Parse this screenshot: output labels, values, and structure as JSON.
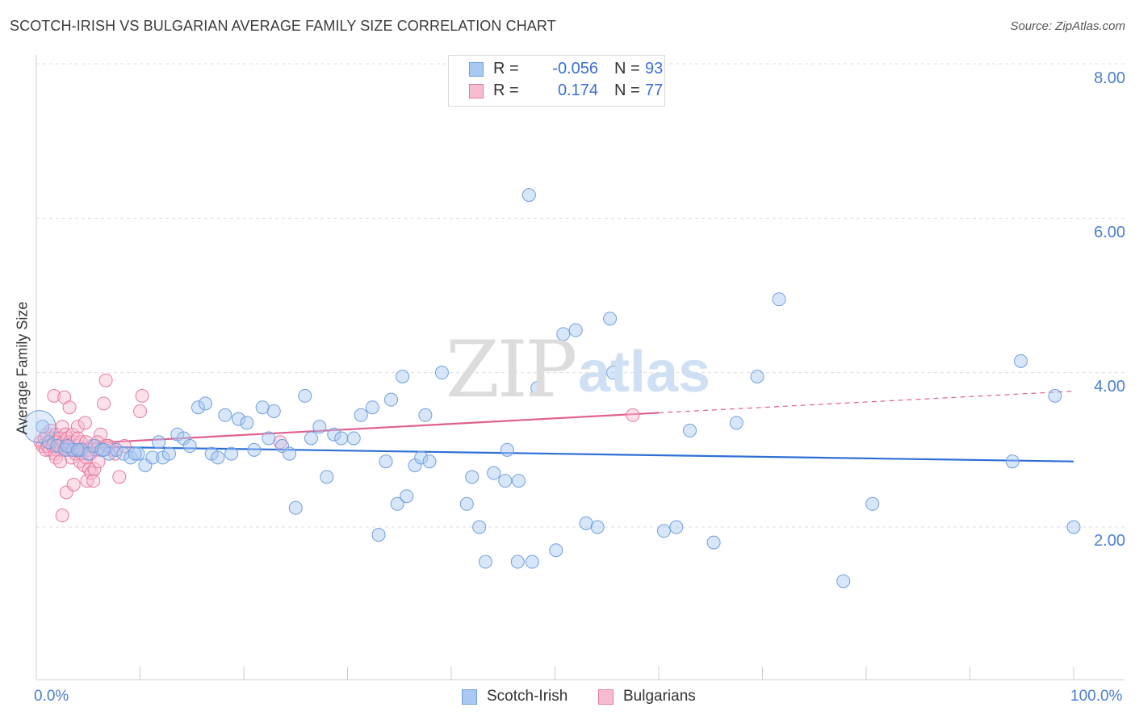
{
  "header": {
    "title": "SCOTCH-IRISH VS BULGARIAN AVERAGE FAMILY SIZE CORRELATION CHART",
    "source": "Source: ZipAtlas.com"
  },
  "watermark": {
    "zip": "ZIP",
    "atlas": "atlas"
  },
  "legend": {
    "rows": [
      {
        "r_label": "R =",
        "r_value": "-0.056",
        "n_label": "N =",
        "n_value": "93",
        "color": "#a9c8f2",
        "border": "#6f9fe0"
      },
      {
        "r_label": "R =",
        "r_value": "0.174",
        "n_label": "N =",
        "n_value": "77",
        "color": "#f7bcd0",
        "border": "#e87aa0"
      }
    ],
    "bottom": [
      {
        "label": "Scotch-Irish",
        "color": "#a9c8f2",
        "border": "#6f9fe0"
      },
      {
        "label": "Bulgarians",
        "color": "#f7bcd0",
        "border": "#e87aa0"
      }
    ]
  },
  "chart_data": {
    "type": "scatter",
    "title": "SCOTCH-IRISH VS BULGARIAN AVERAGE FAMILY SIZE CORRELATION CHART",
    "xlabel": "",
    "ylabel": "Average Family Size",
    "xlim": [
      0,
      100
    ],
    "ylim": [
      0,
      8.2
    ],
    "x_tick_labels": [
      "0.0%",
      "100.0%"
    ],
    "y_ticks": [
      2,
      4,
      6,
      8
    ],
    "y_tick_labels": [
      "2.00",
      "4.00",
      "6.00",
      "8.00"
    ],
    "grid": "horizontal dashed",
    "series": [
      {
        "name": "Scotch-Irish",
        "color": "#6f9fe0",
        "fill": "#a9c8f2",
        "line_color": "#2e6fd6",
        "r": -0.056,
        "n": 93,
        "trend": {
          "x": [
            0,
            100
          ],
          "y": [
            3.05,
            2.85
          ]
        },
        "points": [
          [
            0.6,
            3.3
          ],
          [
            1.2,
            3.1
          ],
          [
            2.0,
            3.05
          ],
          [
            2.8,
            3.0
          ],
          [
            3.5,
            3.0
          ],
          [
            4.3,
            3.0
          ],
          [
            5.0,
            2.95
          ],
          [
            5.6,
            3.05
          ],
          [
            6.3,
            3.0
          ],
          [
            7.0,
            2.95
          ],
          [
            7.7,
            3.0
          ],
          [
            8.4,
            2.95
          ],
          [
            9.1,
            2.9
          ],
          [
            9.8,
            2.95
          ],
          [
            10.5,
            2.8
          ],
          [
            11.2,
            2.9
          ],
          [
            11.8,
            3.1
          ],
          [
            12.2,
            2.9
          ],
          [
            12.8,
            2.95
          ],
          [
            13.6,
            3.2
          ],
          [
            14.2,
            3.15
          ],
          [
            14.8,
            3.05
          ],
          [
            15.6,
            3.55
          ],
          [
            16.3,
            3.6
          ],
          [
            16.9,
            2.95
          ],
          [
            17.5,
            2.9
          ],
          [
            18.2,
            3.45
          ],
          [
            18.8,
            2.95
          ],
          [
            19.5,
            3.4
          ],
          [
            20.3,
            3.35
          ],
          [
            21.0,
            3.0
          ],
          [
            21.8,
            3.55
          ],
          [
            22.4,
            3.15
          ],
          [
            22.9,
            3.5
          ],
          [
            23.7,
            3.05
          ],
          [
            24.4,
            2.95
          ],
          [
            25.0,
            2.25
          ],
          [
            25.9,
            3.7
          ],
          [
            26.5,
            3.15
          ],
          [
            27.3,
            3.3
          ],
          [
            28.0,
            2.65
          ],
          [
            28.7,
            3.2
          ],
          [
            29.4,
            3.15
          ],
          [
            30.6,
            3.15
          ],
          [
            31.3,
            3.45
          ],
          [
            32.4,
            3.55
          ],
          [
            33.0,
            1.9
          ],
          [
            33.7,
            2.85
          ],
          [
            34.2,
            3.65
          ],
          [
            34.8,
            2.3
          ],
          [
            35.3,
            3.95
          ],
          [
            35.7,
            2.4
          ],
          [
            36.5,
            2.8
          ],
          [
            37.1,
            2.9
          ],
          [
            37.5,
            3.45
          ],
          [
            37.9,
            2.85
          ],
          [
            39.1,
            4.0
          ],
          [
            41.5,
            2.3
          ],
          [
            42.0,
            2.65
          ],
          [
            42.7,
            2.0
          ],
          [
            43.3,
            1.55
          ],
          [
            44.1,
            2.7
          ],
          [
            45.2,
            2.6
          ],
          [
            45.4,
            3.0
          ],
          [
            46.4,
            1.55
          ],
          [
            46.5,
            2.6
          ],
          [
            47.5,
            6.3
          ],
          [
            47.8,
            1.55
          ],
          [
            48.3,
            3.8
          ],
          [
            50.1,
            1.7
          ],
          [
            50.8,
            4.5
          ],
          [
            52.0,
            4.55
          ],
          [
            55.3,
            4.7
          ],
          [
            55.6,
            4.0
          ],
          [
            53.0,
            2.05
          ],
          [
            54.1,
            2.0
          ],
          [
            60.5,
            1.95
          ],
          [
            61.7,
            2.0
          ],
          [
            63.0,
            3.25
          ],
          [
            65.3,
            1.8
          ],
          [
            67.5,
            3.35
          ],
          [
            69.5,
            3.95
          ],
          [
            71.6,
            4.95
          ],
          [
            77.8,
            1.3
          ],
          [
            80.6,
            2.3
          ],
          [
            94.1,
            2.85
          ],
          [
            94.9,
            4.15
          ],
          [
            98.2,
            3.7
          ],
          [
            100.0,
            2.0
          ],
          [
            3.0,
            3.05
          ],
          [
            4.0,
            3.0
          ],
          [
            6.5,
            3.0
          ],
          [
            9.5,
            2.95
          ]
        ]
      },
      {
        "name": "Bulgarians",
        "color": "#e87aa0",
        "fill": "#f7bcd0",
        "line_color": "#e0608f",
        "r": 0.174,
        "n": 77,
        "trend": {
          "x": [
            0,
            60
          ],
          "y": [
            3.05,
            3.48
          ]
        },
        "trend_dashed": {
          "x": [
            60,
            100
          ],
          "y": [
            3.48,
            3.76
          ]
        },
        "points": [
          [
            0.4,
            3.1
          ],
          [
            0.6,
            3.05
          ],
          [
            0.8,
            3.15
          ],
          [
            0.9,
            3.0
          ],
          [
            1.0,
            3.2
          ],
          [
            1.1,
            3.05
          ],
          [
            1.2,
            3.1
          ],
          [
            1.3,
            3.0
          ],
          [
            1.4,
            3.25
          ],
          [
            1.5,
            3.15
          ],
          [
            1.6,
            3.05
          ],
          [
            1.7,
            3.1
          ],
          [
            1.8,
            2.95
          ],
          [
            1.9,
            3.2
          ],
          [
            2.0,
            3.0
          ],
          [
            2.1,
            3.1
          ],
          [
            2.2,
            3.05
          ],
          [
            2.3,
            3.15
          ],
          [
            2.4,
            3.0
          ],
          [
            2.5,
            3.3
          ],
          [
            2.6,
            3.1
          ],
          [
            2.7,
            3.0
          ],
          [
            2.8,
            3.2
          ],
          [
            2.9,
            3.05
          ],
          [
            3.0,
            3.15
          ],
          [
            3.1,
            3.0
          ],
          [
            3.2,
            3.1
          ],
          [
            3.3,
            3.05
          ],
          [
            3.4,
            2.9
          ],
          [
            3.5,
            3.2
          ],
          [
            3.6,
            3.0
          ],
          [
            3.7,
            3.1
          ],
          [
            3.8,
            2.95
          ],
          [
            3.9,
            3.05
          ],
          [
            4.0,
            3.3
          ],
          [
            4.1,
            3.0
          ],
          [
            4.2,
            2.85
          ],
          [
            4.3,
            3.1
          ],
          [
            4.4,
            2.95
          ],
          [
            4.5,
            3.0
          ],
          [
            4.6,
            2.8
          ],
          [
            4.7,
            3.35
          ],
          [
            4.8,
            2.9
          ],
          [
            4.9,
            2.6
          ],
          [
            5.0,
            3.0
          ],
          [
            5.1,
            2.75
          ],
          [
            5.2,
            2.95
          ],
          [
            5.3,
            2.7
          ],
          [
            5.4,
            3.05
          ],
          [
            5.5,
            2.6
          ],
          [
            5.6,
            2.75
          ],
          [
            5.8,
            3.0
          ],
          [
            6.0,
            2.85
          ],
          [
            6.2,
            3.2
          ],
          [
            6.5,
            3.6
          ],
          [
            6.7,
            3.9
          ],
          [
            7.0,
            3.05
          ],
          [
            7.3,
            3.0
          ],
          [
            7.6,
            2.95
          ],
          [
            8.0,
            2.65
          ],
          [
            8.5,
            3.05
          ],
          [
            10.0,
            3.5
          ],
          [
            1.7,
            3.7
          ],
          [
            2.7,
            3.68
          ],
          [
            3.2,
            3.55
          ],
          [
            2.9,
            2.45
          ],
          [
            2.5,
            2.15
          ],
          [
            3.6,
            2.55
          ],
          [
            1.9,
            2.9
          ],
          [
            2.3,
            2.85
          ],
          [
            4.0,
            3.15
          ],
          [
            4.8,
            3.1
          ],
          [
            5.9,
            3.1
          ],
          [
            6.8,
            3.05
          ],
          [
            10.2,
            3.7
          ],
          [
            23.5,
            3.1
          ],
          [
            57.5,
            3.45
          ]
        ]
      }
    ]
  }
}
